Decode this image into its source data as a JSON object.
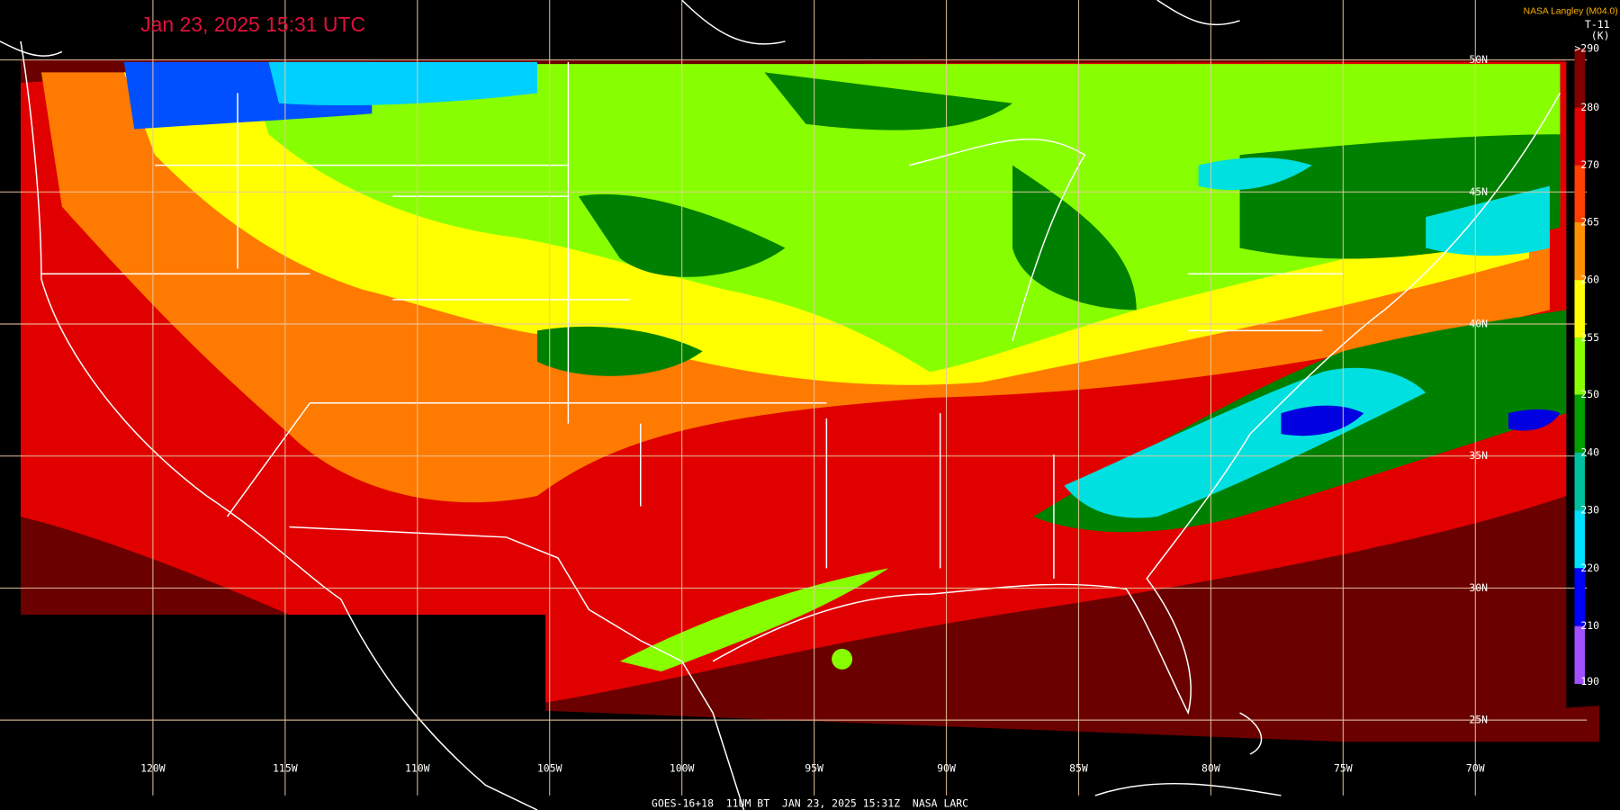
{
  "header": {
    "title": "Jan 23, 2025 15:31 UTC",
    "credit": "NASA Langley (M04.0)"
  },
  "colorbar": {
    "label": "T-11",
    "unit": "(K)",
    "ticks": [
      ">290",
      "280",
      "270",
      "265",
      "260",
      "255",
      "250",
      "240",
      "230",
      "220",
      "210",
      "190"
    ]
  },
  "map": {
    "longitudes": [
      "120W",
      "115W",
      "110W",
      "105W",
      "100W",
      "95W",
      "90W",
      "85W",
      "80W",
      "75W",
      "70W"
    ],
    "latitudes": [
      "50N",
      "45N",
      "40N",
      "35N",
      "30N",
      "25N"
    ]
  },
  "footer": "GOES-16+18  11UM BT  JAN 23, 2025 15:31Z  NASA LARC"
}
